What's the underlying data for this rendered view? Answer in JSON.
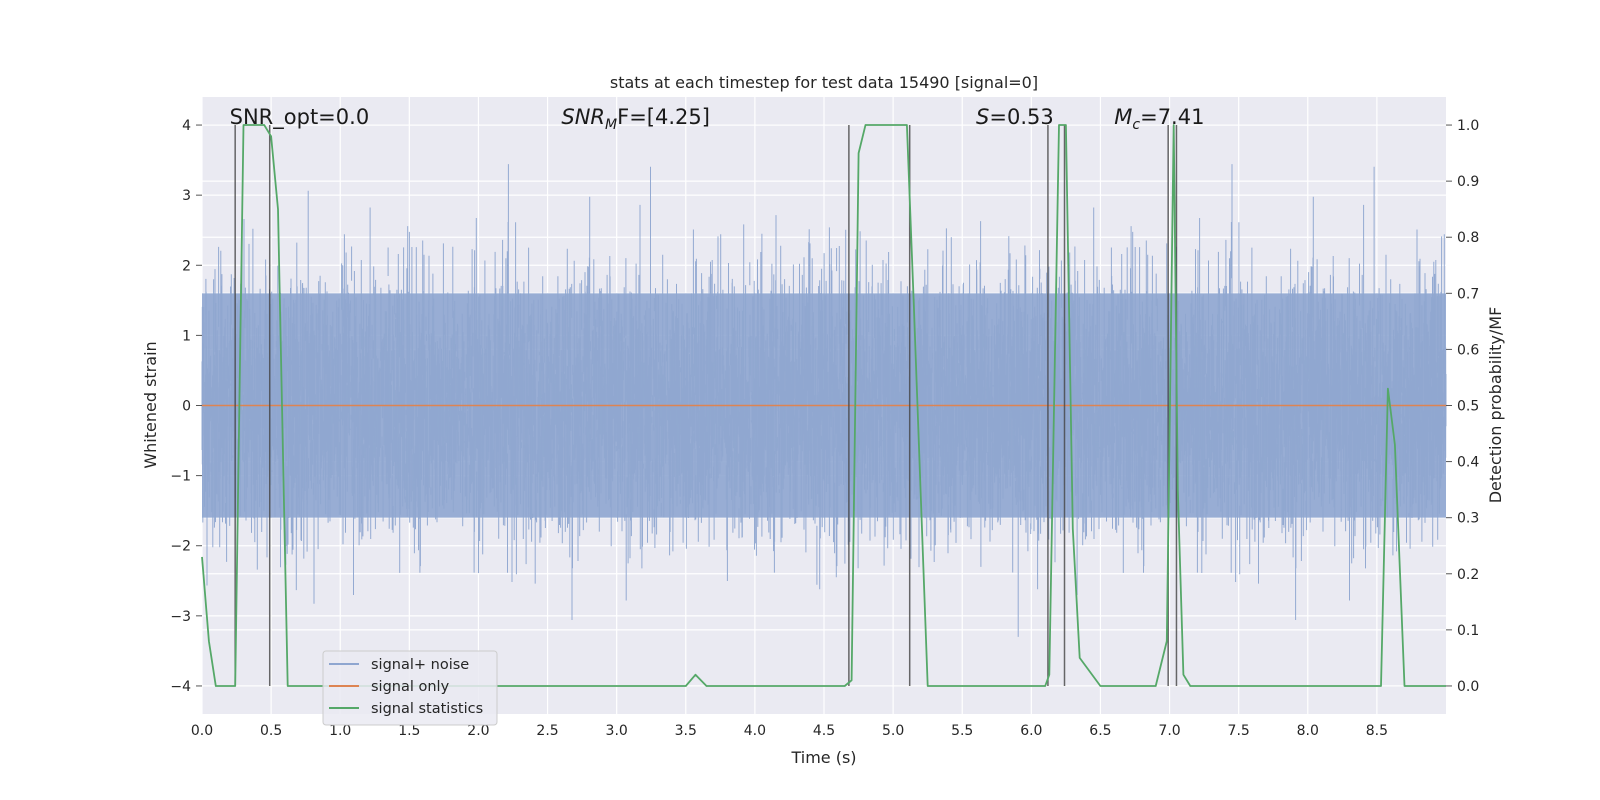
{
  "chart_data": {
    "type": "line",
    "title": "stats at each timestep for test data 15490 [signal=0]",
    "xlabel": "Time (s)",
    "ylabel_left": "Whitened strain",
    "ylabel_right": "Detection probability/MF",
    "xlim": [
      0.0,
      9.0
    ],
    "ylim_left": [
      -4.4,
      4.4
    ],
    "ylim_right": [
      -0.05,
      1.05
    ],
    "x_ticks": [
      "0.0",
      "0.5",
      "1.0",
      "1.5",
      "2.0",
      "2.5",
      "3.0",
      "3.5",
      "4.0",
      "4.5",
      "5.0",
      "5.5",
      "6.0",
      "6.5",
      "7.0",
      "7.5",
      "8.0",
      "8.5"
    ],
    "y_ticks_left": [
      "4",
      "3",
      "2",
      "1",
      "0",
      "−1",
      "−2",
      "−3",
      "−4"
    ],
    "y_ticks_right": [
      "1.0",
      "0.9",
      "0.8",
      "0.7",
      "0.6",
      "0.5",
      "0.4",
      "0.3",
      "0.2",
      "0.1",
      "0.0"
    ],
    "grid": true,
    "legend_location": "lower-left",
    "colors": {
      "noise": "#8fa6d0",
      "signal": "#dd8452",
      "stats": "#55a868",
      "markers": "#444444",
      "plot_bg": "#eaeaf2",
      "grid": "#ffffff"
    },
    "series": [
      {
        "name": "signal+ noise",
        "kind": "whitened strain, noise-like",
        "typical_range": [
          -1.6,
          1.6
        ],
        "peak_range": [
          -3.3,
          3.6
        ]
      },
      {
        "name": "signal only",
        "x": [
          0.0,
          9.0
        ],
        "y": [
          0.0,
          0.0
        ]
      },
      {
        "name": "signal statistics",
        "axis": "right",
        "x": [
          0.0,
          0.05,
          0.1,
          0.2,
          0.24,
          0.3,
          0.35,
          0.45,
          0.5,
          0.55,
          0.62,
          0.7,
          1.0,
          2.0,
          3.0,
          3.2,
          3.5,
          3.57,
          3.65,
          3.8,
          4.0,
          4.5,
          4.65,
          4.7,
          4.75,
          4.8,
          4.9,
          5.0,
          5.1,
          5.15,
          5.25,
          5.5,
          5.8,
          6.0,
          6.1,
          6.13,
          6.2,
          6.25,
          6.3,
          6.35,
          6.5,
          6.7,
          6.9,
          6.98,
          7.03,
          7.06,
          7.1,
          7.15,
          7.5,
          8.0,
          8.5,
          8.53,
          8.58,
          8.63,
          8.7,
          9.0
        ],
        "y": [
          0.23,
          0.08,
          0.0,
          0.0,
          0.0,
          1.0,
          1.0,
          1.0,
          0.98,
          0.85,
          0.0,
          0.0,
          0.0,
          0.0,
          0.0,
          0.0,
          0.0,
          0.02,
          0.0,
          0.0,
          0.0,
          0.0,
          0.0,
          0.01,
          0.95,
          1.0,
          1.0,
          1.0,
          1.0,
          0.68,
          0.0,
          0.0,
          0.0,
          0.0,
          0.0,
          0.02,
          1.0,
          1.0,
          0.28,
          0.05,
          0.0,
          0.0,
          0.0,
          0.08,
          1.0,
          0.35,
          0.02,
          0.0,
          0.0,
          0.0,
          0.0,
          0.0,
          0.53,
          0.43,
          0.0,
          0.0
        ]
      }
    ],
    "vertical_markers": [
      0.24,
      0.49,
      4.68,
      5.12,
      6.12,
      6.24,
      6.99,
      7.05
    ],
    "annotations": [
      {
        "id": "snr_opt",
        "x": 0.2,
        "text": "SNR_opt=0.0"
      },
      {
        "id": "snr_mf",
        "x": 2.6,
        "main": "SNR",
        "sub": "M",
        "rest": "F=[4.25]"
      },
      {
        "id": "s_val",
        "x": 5.6,
        "main": "S",
        "rest": "=0.53"
      },
      {
        "id": "mc_val",
        "x": 6.6,
        "main": "M",
        "sub": "c",
        "rest": "=7.41"
      }
    ]
  }
}
